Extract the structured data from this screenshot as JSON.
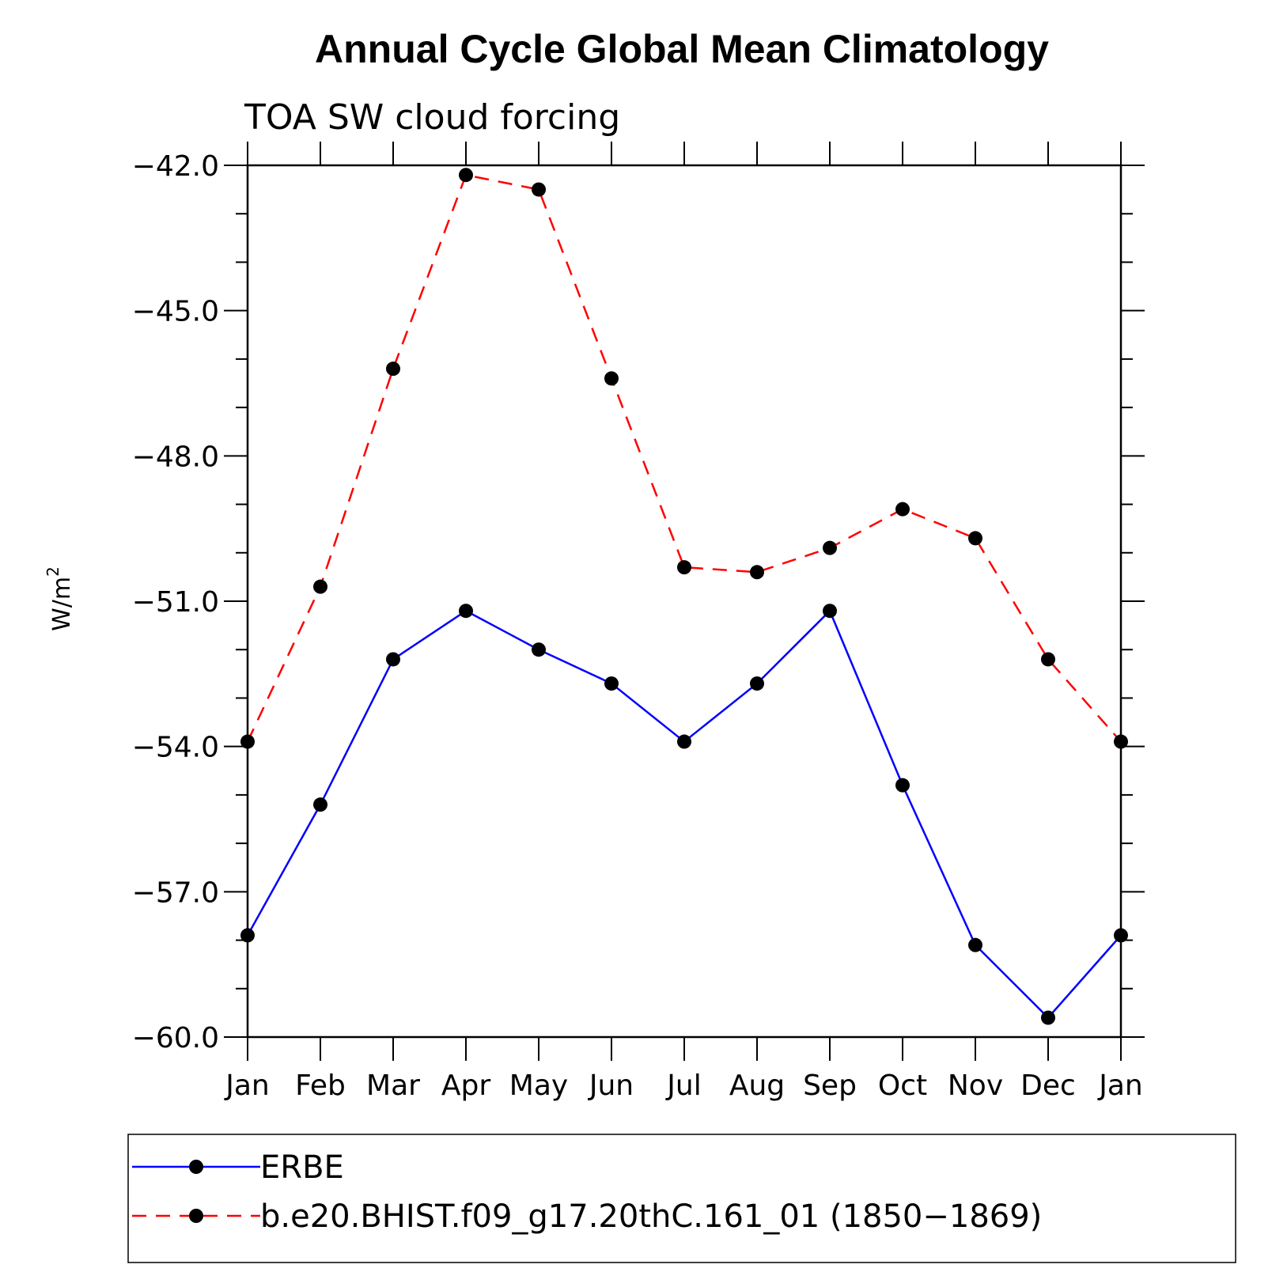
{
  "chart_data": {
    "type": "line",
    "title": "Annual Cycle Global Mean Climatology",
    "subtitle": "TOA SW cloud forcing",
    "ylabel": "W/m",
    "ylabel_superscript": "2",
    "categories": [
      "Jan",
      "Feb",
      "Mar",
      "Apr",
      "May",
      "Jun",
      "Jul",
      "Aug",
      "Sep",
      "Oct",
      "Nov",
      "Dec",
      "Jan"
    ],
    "ylim": [
      -60.0,
      -42.0
    ],
    "yticks": [
      "-42.0",
      "-45.0",
      "-48.0",
      "-51.0",
      "-54.0",
      "-57.0",
      "-60.0"
    ],
    "ytick_values": [
      -42,
      -45,
      -48,
      -51,
      -54,
      -57,
      -60
    ],
    "grid": false,
    "legend_position": "bottom",
    "series": [
      {
        "name": "ERBE",
        "color": "#0000ff",
        "dash": "solid",
        "values": [
          -57.9,
          -55.2,
          -52.2,
          -51.2,
          -52.0,
          -52.7,
          -53.9,
          -52.7,
          -51.2,
          -54.8,
          -58.1,
          -59.6,
          -57.9
        ]
      },
      {
        "name": "b.e20.BHIST.f09_g17.20thC.161_01 (1850−1869)",
        "color": "#ff0000",
        "dash": "dashed",
        "values": [
          -53.9,
          -50.7,
          -46.2,
          -42.2,
          -42.5,
          -46.4,
          -50.3,
          -50.4,
          -49.9,
          -49.1,
          -49.7,
          -52.2,
          -53.9
        ]
      }
    ]
  }
}
